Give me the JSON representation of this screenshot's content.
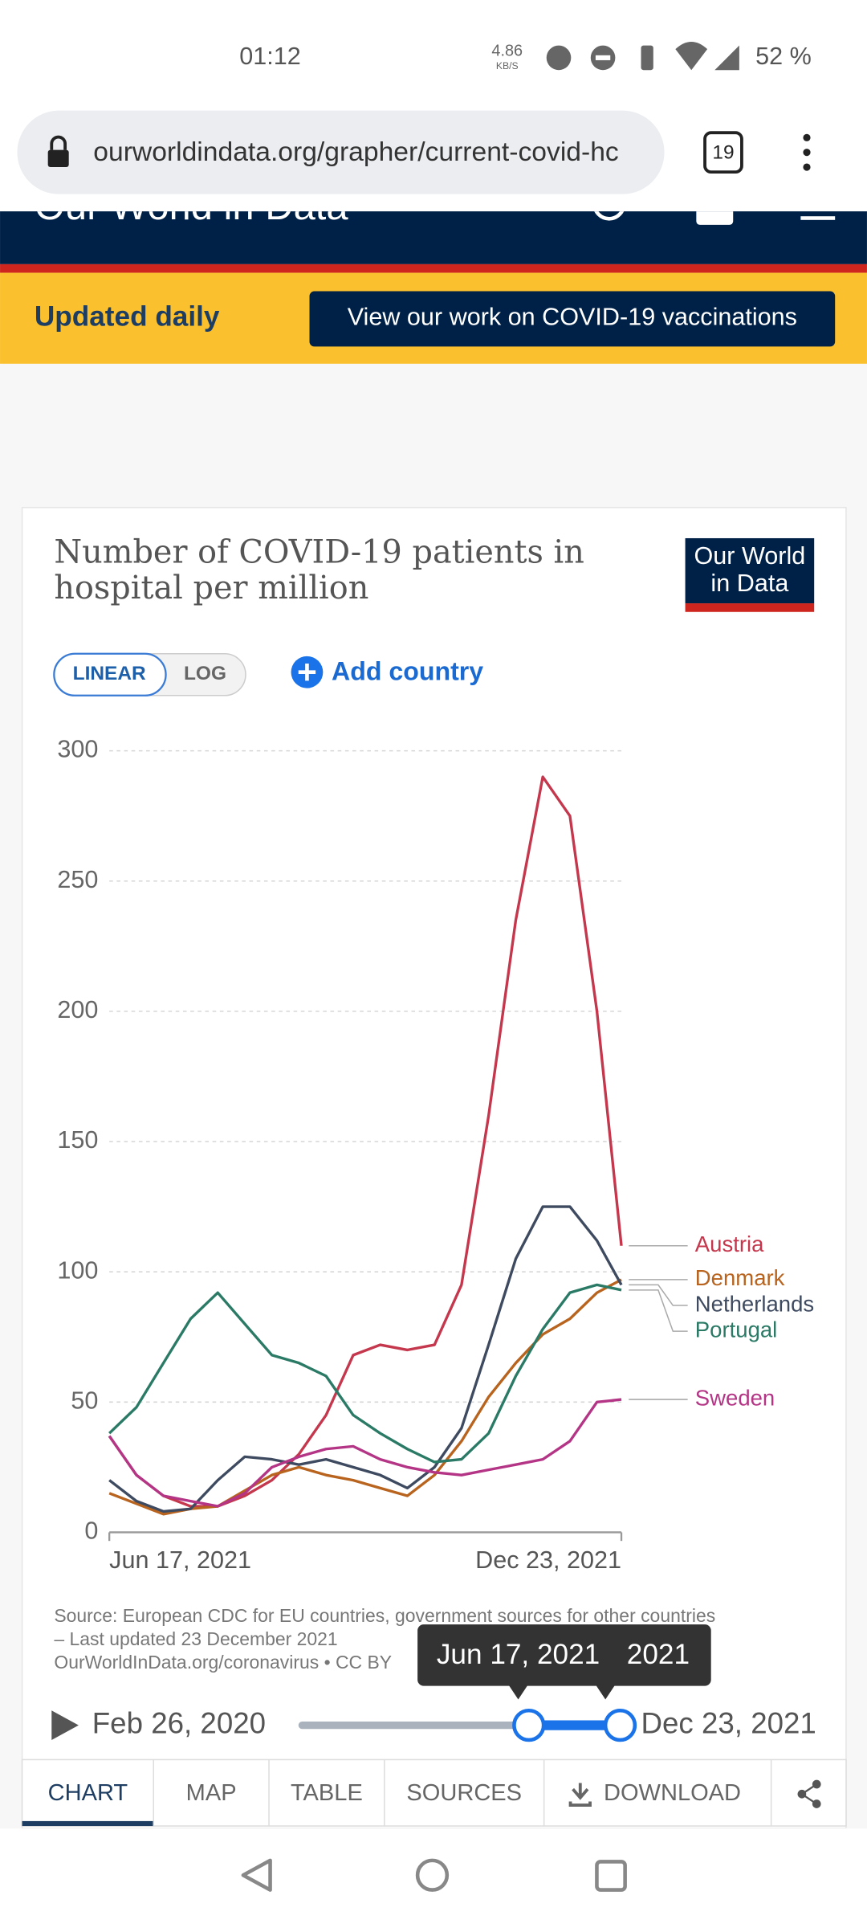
{
  "status_bar": {
    "time": "01:12",
    "speed": "4.86",
    "speed_unit": "KB/S",
    "battery": "52 %"
  },
  "browser": {
    "url": "ourworldindata.org/grapher/current-covid-hc",
    "tabs": "19"
  },
  "site_header": {
    "brand": "Our World in Data"
  },
  "banner": {
    "label": "Updated daily",
    "button": "View our work on COVID-19 vaccinations"
  },
  "logo": "Our World in Data",
  "controls": {
    "linear": "LINEAR",
    "log": "LOG",
    "add": "Add country"
  },
  "chart_data": {
    "type": "line",
    "title": "Number of COVID-19 patients in hospital per million",
    "x": [
      "2021-06-17",
      "2021-06-27",
      "2021-07-07",
      "2021-07-17",
      "2021-07-27",
      "2021-08-06",
      "2021-08-16",
      "2021-08-26",
      "2021-09-05",
      "2021-09-15",
      "2021-09-25",
      "2021-10-05",
      "2021-10-15",
      "2021-10-25",
      "2021-11-04",
      "2021-11-14",
      "2021-11-24",
      "2021-12-04",
      "2021-12-14",
      "2021-12-23"
    ],
    "series": [
      {
        "name": "Austria",
        "color": "#c4374c",
        "values": [
          37,
          22,
          14,
          10,
          10,
          14,
          20,
          30,
          45,
          68,
          72,
          70,
          72,
          95,
          160,
          235,
          290,
          275,
          200,
          110
        ]
      },
      {
        "name": "Denmark",
        "color": "#b8641f",
        "values": [
          15,
          11,
          7,
          9,
          10,
          16,
          22,
          25,
          22,
          20,
          17,
          14,
          22,
          35,
          52,
          65,
          76,
          82,
          92,
          97
        ]
      },
      {
        "name": "Netherlands",
        "color": "#3e4a60",
        "values": [
          20,
          12,
          8,
          9,
          20,
          29,
          28,
          26,
          28,
          25,
          22,
          17,
          25,
          40,
          72,
          105,
          125,
          125,
          112,
          95
        ]
      },
      {
        "name": "Portugal",
        "color": "#2a7a66",
        "values": [
          38,
          48,
          65,
          82,
          92,
          80,
          68,
          65,
          60,
          45,
          38,
          32,
          27,
          28,
          38,
          60,
          78,
          92,
          95,
          93
        ]
      },
      {
        "name": "Sweden",
        "color": "#b43585",
        "values": [
          37,
          22,
          14,
          12,
          10,
          15,
          25,
          29,
          32,
          33,
          28,
          25,
          23,
          22,
          24,
          26,
          28,
          35,
          50,
          51
        ]
      }
    ],
    "xlim": [
      "2021-06-17",
      "2021-12-23"
    ],
    "xticks": [
      {
        "value": "2021-06-17",
        "label": "Jun 17, 2021"
      },
      {
        "value": "2021-12-23",
        "label": "Dec 23, 2021"
      }
    ],
    "ylim": [
      0,
      300
    ],
    "yticks": [
      0,
      50,
      100,
      150,
      200,
      250,
      300
    ],
    "grid": true,
    "log_scale": false
  },
  "source": "Source: European CDC for EU countries, government sources for other countries – Last updated 23 December 2021",
  "license": "OurWorldInData.org/coronavirus • CC BY",
  "timeline": {
    "start": "Feb 26, 2020",
    "end": "Dec 23, 2021",
    "tooltip_start": "Jun 17, 2021",
    "tooltip_end": "2021"
  },
  "tabs": [
    "CHART",
    "MAP",
    "TABLE",
    "SOURCES",
    "DOWNLOAD"
  ]
}
